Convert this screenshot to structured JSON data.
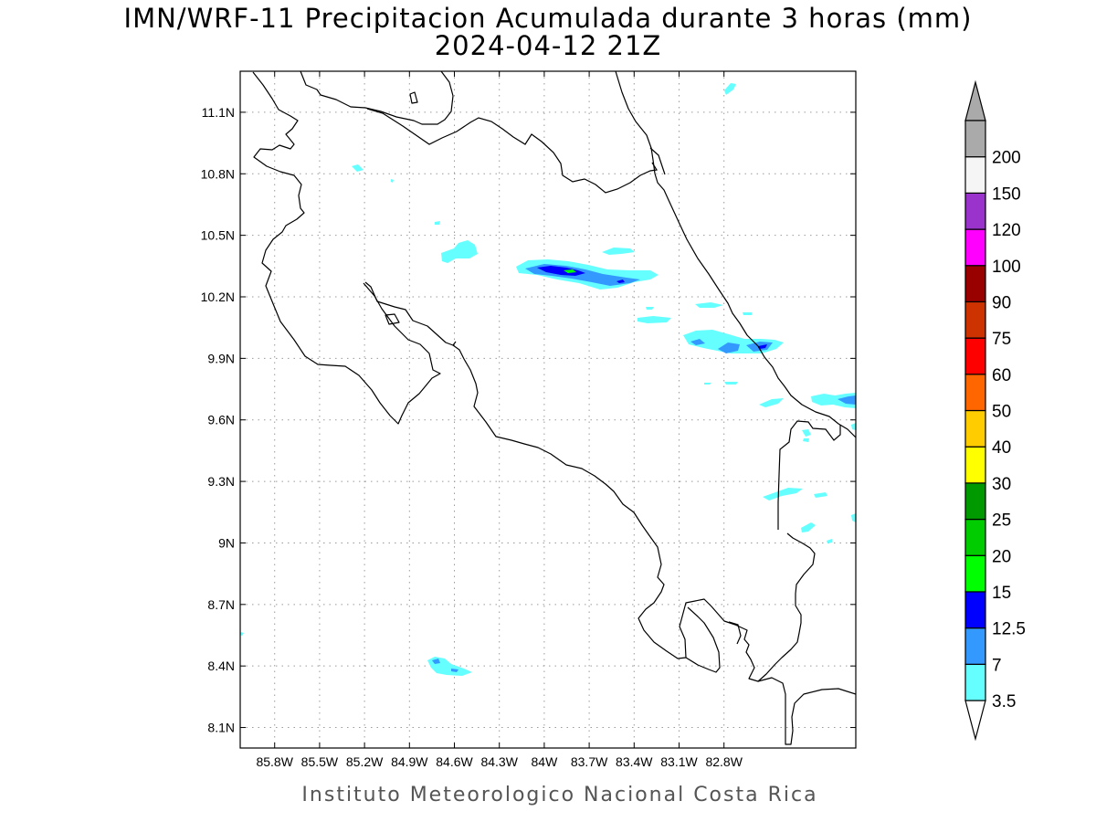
{
  "title_line1": "IMN/WRF-11 Precipitacion Acumulada durante 3 horas (mm)",
  "title_line2": "2024-04-12 21Z",
  "footer": "Instituto Meteorologico Nacional Costa Rica",
  "map": {
    "lon_range": [
      -86.03,
      -81.92
    ],
    "lat_range": [
      8.0,
      11.3
    ],
    "lon_ticks": [
      {
        "v": -85.8,
        "label": "85.8W"
      },
      {
        "v": -85.5,
        "label": "85.5W"
      },
      {
        "v": -85.2,
        "label": "85.2W"
      },
      {
        "v": -84.9,
        "label": "84.9W"
      },
      {
        "v": -84.6,
        "label": "84.6W"
      },
      {
        "v": -84.3,
        "label": "84.3W"
      },
      {
        "v": -84.0,
        "label": "84W"
      },
      {
        "v": -83.7,
        "label": "83.7W"
      },
      {
        "v": -83.4,
        "label": "83.4W"
      },
      {
        "v": -83.1,
        "label": "83.1W"
      },
      {
        "v": -82.8,
        "label": "82.8W"
      }
    ],
    "lat_ticks": [
      {
        "v": 11.1,
        "label": "11.1N"
      },
      {
        "v": 10.8,
        "label": "10.8N"
      },
      {
        "v": 10.5,
        "label": "10.5N"
      },
      {
        "v": 10.2,
        "label": "10.2N"
      },
      {
        "v": 9.9,
        "label": "9.9N"
      },
      {
        "v": 9.6,
        "label": "9.6N"
      },
      {
        "v": 9.3,
        "label": "9.3N"
      },
      {
        "v": 9.0,
        "label": "9N"
      },
      {
        "v": 8.7,
        "label": "8.7N"
      },
      {
        "v": 8.4,
        "label": "8.4N"
      },
      {
        "v": 8.1,
        "label": "8.1N"
      }
    ],
    "grid": true
  },
  "legend": {
    "levels": [
      {
        "label": "3.5",
        "color": "#66ffff"
      },
      {
        "label": "7",
        "color": "#3399ff"
      },
      {
        "label": "12.5",
        "color": "#0000ff"
      },
      {
        "label": "15",
        "color": "#00ff00"
      },
      {
        "label": "20",
        "color": "#00cc00"
      },
      {
        "label": "25",
        "color": "#009900"
      },
      {
        "label": "30",
        "color": "#ffff00"
      },
      {
        "label": "40",
        "color": "#ffcc00"
      },
      {
        "label": "50",
        "color": "#ff6600"
      },
      {
        "label": "60",
        "color": "#ff0000"
      },
      {
        "label": "75",
        "color": "#cc3300"
      },
      {
        "label": "90",
        "color": "#990000"
      },
      {
        "label": "100",
        "color": "#ff00ff"
      },
      {
        "label": "120",
        "color": "#9933cc"
      },
      {
        "label": "150",
        "color": "#f5f5f5"
      },
      {
        "label": "200",
        "color": "#aaaaaa"
      }
    ],
    "low_end_color": "#ffffff",
    "high_end_color": "#aaaaaa"
  }
}
